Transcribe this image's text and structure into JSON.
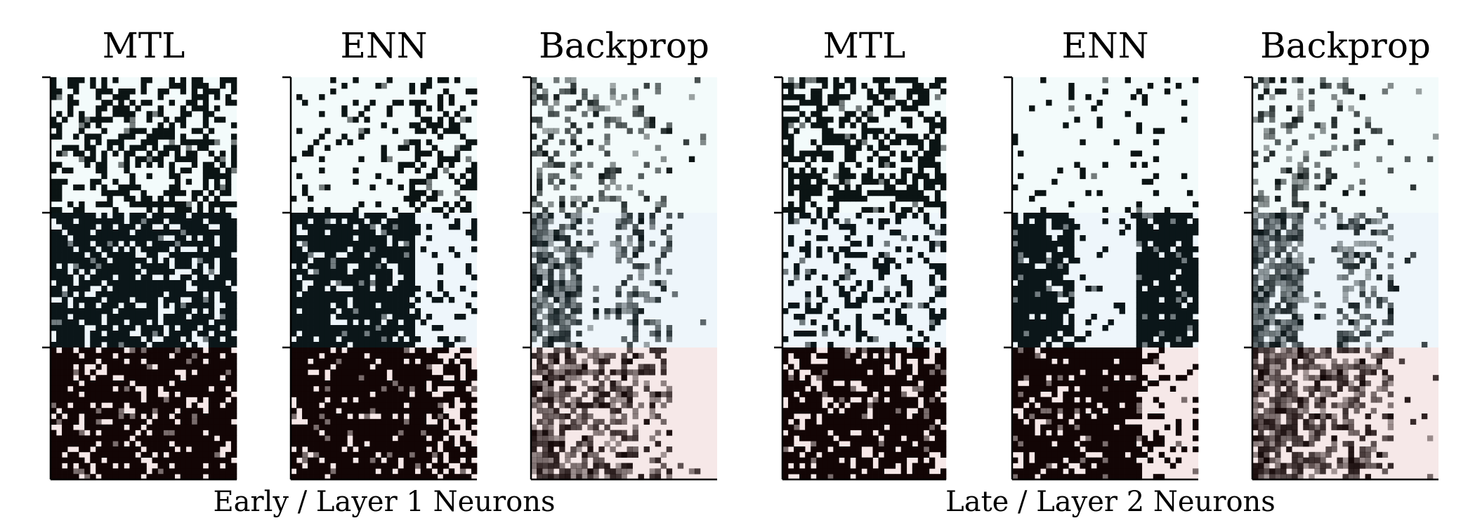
{
  "chart_data": {
    "type": "heatmap",
    "panel_titles": [
      "MTL",
      "ENN",
      "Backprop",
      "MTL",
      "ENN",
      "Backprop"
    ],
    "group_labels": [
      "Early / Layer 1 Neurons",
      "Late / Layer 2 Neurons"
    ],
    "groups_per_panel": 3,
    "grid": false,
    "colors": {
      "group_backgrounds": [
        "#f3fbfb",
        "#eef6fb",
        "#f6e8e8"
      ],
      "group_ink": [
        "#0b1414",
        "#0b1619",
        "#120505"
      ],
      "axis": "#000000"
    },
    "panels": [
      {
        "name": "MTL",
        "columns": 33,
        "rows_per_group": [
          24,
          24,
          24
        ],
        "density": [
          0.45,
          0.78,
          0.8
        ],
        "column_profile": "uniform"
      },
      {
        "name": "ENN",
        "columns": 33,
        "rows_per_group": [
          24,
          24,
          24
        ],
        "density": [
          0.25,
          0.85,
          0.88
        ],
        "column_profile": "left-heavy-right-sparse"
      },
      {
        "name": "Backprop",
        "columns": 33,
        "rows_per_group": [
          24,
          24,
          24
        ],
        "density": [
          0.35,
          0.7,
          0.7
        ],
        "column_profile": "graded-left-to-right"
      },
      {
        "name": "MTL",
        "columns": 29,
        "rows_per_group": [
          24,
          24,
          24
        ],
        "density": [
          0.55,
          0.3,
          0.8
        ],
        "column_profile": "uniform"
      },
      {
        "name": "ENN",
        "columns": 33,
        "rows_per_group": [
          24,
          24,
          24
        ],
        "density": [
          0.1,
          0.9,
          0.85
        ],
        "column_profile": "split-blocks"
      },
      {
        "name": "Backprop",
        "columns": 33,
        "rows_per_group": [
          24,
          24,
          24
        ],
        "density": [
          0.3,
          0.75,
          0.75
        ],
        "column_profile": "graded-left-to-right"
      }
    ]
  }
}
